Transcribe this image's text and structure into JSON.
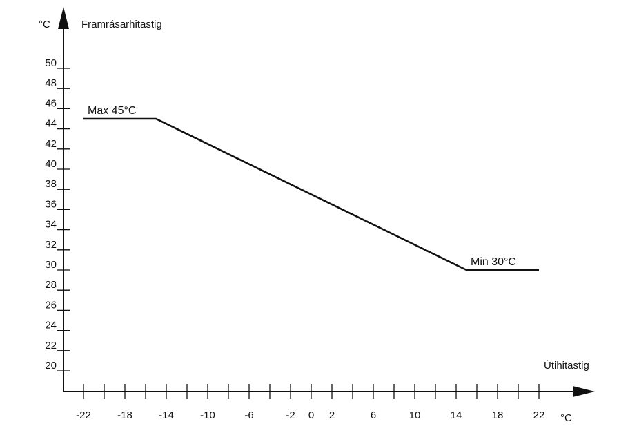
{
  "chart_data": {
    "type": "line",
    "y_unit": "°C",
    "ylabel": "Framrásarhitastig",
    "x_unit": "°C",
    "xlabel": "Útihitastig",
    "y_tick_labels": [
      "20",
      "22",
      "24",
      "26",
      "28",
      "30",
      "32",
      "34",
      "36",
      "38",
      "40",
      "42",
      "44",
      "46",
      "48",
      "50"
    ],
    "x_tick_labels": [
      "-22",
      "-18",
      "-14",
      "-10",
      "-6",
      "-2",
      "0",
      "2",
      "6",
      "10",
      "14",
      "18",
      "22"
    ],
    "x_ticks_minor_step": 2,
    "xlim": [
      -22,
      22
    ],
    "ylim": [
      20,
      50
    ],
    "series": [
      {
        "points": [
          {
            "x": -22,
            "y": 45
          },
          {
            "x": -15,
            "y": 45
          },
          {
            "x": 15,
            "y": 30
          },
          {
            "x": 22,
            "y": 30
          }
        ]
      }
    ],
    "annotations": [
      {
        "text": "Max 45°C",
        "x": -22,
        "y": 45
      },
      {
        "text": "Min 30°C",
        "x": 15,
        "y": 30
      }
    ]
  }
}
